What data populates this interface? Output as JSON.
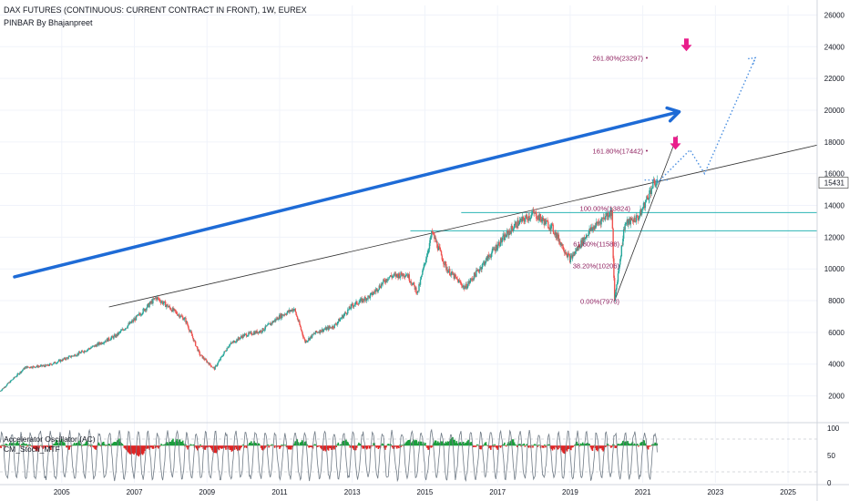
{
  "header": {
    "title": "DAX FUTURES (CONTINUOUS: CURRENT CONTRACT IN FRONT), 1W, EUREX",
    "indicator": "PINBAR By Bhajanpreet"
  },
  "chart_data": {
    "type": "candlestick",
    "x_axis": {
      "ticks": [
        "2005",
        "2007",
        "2009",
        "2011",
        "2013",
        "2015",
        "2017",
        "2019",
        "2021",
        "2023",
        "2025"
      ],
      "range": [
        2003.3,
        2025.8
      ]
    },
    "y_axis": {
      "ticks": [
        "2000",
        "4000",
        "6000",
        "8000",
        "10000",
        "12000",
        "14000",
        "16000",
        "18000",
        "20000",
        "22000",
        "24000",
        "26000"
      ],
      "range": [
        1000,
        26600
      ]
    },
    "last_price": "15431",
    "price_path": [
      [
        2003.3,
        2300
      ],
      [
        2004.0,
        3800
      ],
      [
        2004.6,
        3900
      ],
      [
        2005.5,
        4700
      ],
      [
        2006.5,
        5800
      ],
      [
        2007.0,
        6800
      ],
      [
        2007.6,
        8200
      ],
      [
        2008.0,
        7500
      ],
      [
        2008.4,
        6800
      ],
      [
        2008.8,
        4600
      ],
      [
        2009.2,
        3700
      ],
      [
        2009.6,
        5200
      ],
      [
        2010.0,
        5800
      ],
      [
        2010.5,
        6100
      ],
      [
        2011.0,
        7000
      ],
      [
        2011.4,
        7500
      ],
      [
        2011.7,
        5400
      ],
      [
        2012.0,
        6000
      ],
      [
        2012.5,
        6400
      ],
      [
        2013.0,
        7700
      ],
      [
        2013.5,
        8300
      ],
      [
        2014.0,
        9500
      ],
      [
        2014.5,
        9700
      ],
      [
        2014.8,
        8500
      ],
      [
        2015.2,
        12300
      ],
      [
        2015.6,
        10000
      ],
      [
        2016.1,
        8800
      ],
      [
        2016.6,
        10300
      ],
      [
        2017.0,
        11500
      ],
      [
        2017.5,
        12800
      ],
      [
        2018.0,
        13500
      ],
      [
        2018.5,
        12600
      ],
      [
        2019.0,
        10600
      ],
      [
        2019.5,
        12300
      ],
      [
        2020.0,
        13400
      ],
      [
        2020.15,
        13600
      ],
      [
        2020.22,
        7970
      ],
      [
        2020.5,
        12800
      ],
      [
        2020.9,
        13300
      ],
      [
        2021.3,
        15400
      ],
      [
        2021.4,
        15431
      ]
    ],
    "fib_levels": [
      {
        "label": "261.80%(23297)",
        "value": 23297
      },
      {
        "label": "161.80%(17442)",
        "value": 17442
      },
      {
        "label": "100.00%(13824)",
        "value": 13824
      },
      {
        "label": "61.80%(11588)",
        "value": 11588
      },
      {
        "label": "38.20%(10206)",
        "value": 10206
      },
      {
        "label": "0.00%(7970)",
        "value": 7970
      }
    ],
    "trendline": {
      "from": [
        2006.3,
        7600
      ],
      "to": [
        2025.8,
        17800
      ]
    },
    "horizontal_lines": [
      13550,
      12400
    ],
    "projection_path": [
      [
        2021.4,
        15431
      ],
      [
        2022.3,
        17500
      ],
      [
        2022.7,
        16000
      ],
      [
        2024.1,
        23300
      ]
    ],
    "big_arrow": {
      "from": [
        2003.7,
        9500
      ],
      "to": [
        2022.0,
        19900
      ]
    },
    "down_arrows": [
      [
        2021.9,
        17800
      ],
      [
        2022.2,
        24000
      ]
    ],
    "colors": {
      "up": "#26a69a",
      "down": "#ef5350",
      "arrow": "#1e6bd6",
      "projection": "#4a8fe0",
      "fib": "#8e1f5e",
      "hline": "#2bb5b5",
      "marker": "#e91e8c",
      "osc_green": "#1a9e3c",
      "osc_red": "#e02424",
      "stoch": "#707b86"
    },
    "oscillator_panel": {
      "labels": [
        "Accelerator Oscillator (AC)",
        "CM_Stoch_MTF"
      ],
      "y_ticks": [
        "100",
        "50",
        "0"
      ]
    }
  }
}
